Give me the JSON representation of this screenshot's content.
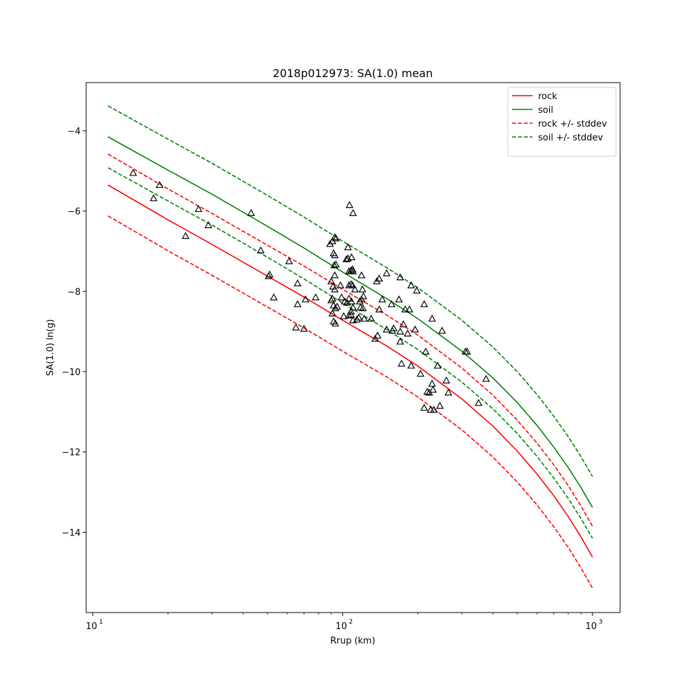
{
  "chart_data": {
    "type": "scatter",
    "title": "2018p012973: SA(1.0) mean",
    "xlabel": "Rrup (km)",
    "ylabel": "SA(1.0) ln(g)",
    "xscale": "log",
    "xlim": [
      9.4,
      1290
    ],
    "ylim": [
      -16.0,
      -2.8
    ],
    "x_tick_labels": [
      "10",
      "10",
      "10"
    ],
    "x_tick_exponents": [
      "1",
      "2",
      "3"
    ],
    "x_tick_values": [
      10,
      100,
      1000
    ],
    "y_ticks": [
      -4,
      -6,
      -8,
      -10,
      -12,
      -14
    ],
    "y_tick_labels": [
      "−4",
      "−6",
      "−8",
      "−10",
      "−12",
      "−14"
    ],
    "grid": false,
    "legend_position": "top-right",
    "colors": {
      "rock": "#ff0000",
      "soil": "#008000",
      "points": "#000000"
    },
    "curve_x": [
      11.5,
      20,
      30,
      50,
      70,
      100,
      150,
      200,
      300,
      400,
      500,
      600,
      700,
      800,
      900,
      1000
    ],
    "series": [
      {
        "name": "rock",
        "color": "#ff0000",
        "style": "solid",
        "y": [
          -5.35,
          -6.22,
          -6.83,
          -7.62,
          -8.14,
          -8.72,
          -9.36,
          -9.86,
          -10.68,
          -11.36,
          -11.98,
          -12.55,
          -13.09,
          -13.61,
          -14.12,
          -14.62
        ]
      },
      {
        "name": "soil",
        "color": "#008000",
        "style": "solid",
        "y": [
          -4.15,
          -4.98,
          -5.58,
          -6.38,
          -6.92,
          -7.52,
          -8.18,
          -8.68,
          -9.49,
          -10.16,
          -10.77,
          -11.34,
          -11.88,
          -12.39,
          -12.89,
          -13.38
        ]
      },
      {
        "name": "rock +/- stddev",
        "color": "#ff0000",
        "style": "dashed",
        "y": [
          -4.58,
          -5.45,
          -6.06,
          -6.85,
          -7.37,
          -7.95,
          -8.59,
          -9.09,
          -9.91,
          -10.59,
          -11.21,
          -11.78,
          -12.32,
          -12.84,
          -13.35,
          -13.85
        ]
      },
      {
        "name": "",
        "color": "#ff0000",
        "style": "dashed",
        "legend": false,
        "y": [
          -6.12,
          -6.99,
          -7.6,
          -8.39,
          -8.91,
          -9.49,
          -10.13,
          -10.63,
          -11.45,
          -12.13,
          -12.75,
          -13.32,
          -13.86,
          -14.38,
          -14.89,
          -15.39
        ]
      },
      {
        "name": "soil +/- stddev",
        "color": "#008000",
        "style": "dashed",
        "y": [
          -3.38,
          -4.21,
          -4.81,
          -5.61,
          -6.15,
          -6.75,
          -7.41,
          -7.91,
          -8.72,
          -9.39,
          -10.0,
          -10.57,
          -11.11,
          -11.62,
          -12.12,
          -12.61
        ]
      },
      {
        "name": "",
        "color": "#008000",
        "style": "dashed",
        "legend": false,
        "y": [
          -4.92,
          -5.75,
          -6.35,
          -7.15,
          -7.69,
          -8.29,
          -8.95,
          -9.45,
          -10.26,
          -10.93,
          -11.54,
          -12.11,
          -12.65,
          -13.16,
          -13.66,
          -14.15
        ]
      }
    ],
    "points": [
      [
        14.5,
        -5.05
      ],
      [
        18.5,
        -5.35
      ],
      [
        17.5,
        -5.68
      ],
      [
        26.5,
        -5.95
      ],
      [
        29,
        -6.35
      ],
      [
        23.5,
        -6.62
      ],
      [
        43,
        -6.05
      ],
      [
        47,
        -6.98
      ],
      [
        51,
        -7.58
      ],
      [
        50.5,
        -7.62
      ],
      [
        53,
        -8.15
      ],
      [
        61,
        -7.25
      ],
      [
        66,
        -7.8
      ],
      [
        71,
        -8.2
      ],
      [
        66,
        -8.32
      ],
      [
        78,
        -8.15
      ],
      [
        65,
        -8.9
      ],
      [
        70,
        -8.93
      ],
      [
        89,
        -6.82
      ],
      [
        91,
        -6.75
      ],
      [
        93,
        -6.65
      ],
      [
        94,
        -6.68
      ],
      [
        92,
        -7.05
      ],
      [
        93,
        -7.1
      ],
      [
        92.5,
        -7.35
      ],
      [
        94,
        -7.33
      ],
      [
        93,
        -7.6
      ],
      [
        90,
        -7.75
      ],
      [
        91.5,
        -7.88
      ],
      [
        93,
        -7.95
      ],
      [
        91,
        -8.18
      ],
      [
        90,
        -8.22
      ],
      [
        92,
        -8.35
      ],
      [
        93.5,
        -8.42
      ],
      [
        95,
        -8.38
      ],
      [
        91,
        -8.55
      ],
      [
        92,
        -8.75
      ],
      [
        93.5,
        -8.8
      ],
      [
        98,
        -7.85
      ],
      [
        99,
        -8.15
      ],
      [
        102,
        -8.25
      ],
      [
        104,
        -8.28
      ],
      [
        101,
        -8.62
      ],
      [
        106,
        -8.6
      ],
      [
        108,
        -8.58
      ],
      [
        105,
        -6.9
      ],
      [
        106.5,
        -5.85
      ],
      [
        110,
        -6.05
      ],
      [
        103.5,
        -7.2
      ],
      [
        105,
        -7.18
      ],
      [
        108.5,
        -7.15
      ],
      [
        106,
        -7.5
      ],
      [
        108,
        -7.48
      ],
      [
        110,
        -7.5
      ],
      [
        109.5,
        -7.45
      ],
      [
        106,
        -7.85
      ],
      [
        108,
        -7.82
      ],
      [
        109.5,
        -7.85
      ],
      [
        106,
        -8.18
      ],
      [
        108.5,
        -8.25
      ],
      [
        110,
        -8.4
      ],
      [
        108,
        -8.5
      ],
      [
        110,
        -8.72
      ],
      [
        112,
        -7.95
      ],
      [
        116,
        -8.65
      ],
      [
        117,
        -8.25
      ],
      [
        118,
        -8.4
      ],
      [
        114,
        -8.7
      ],
      [
        119,
        -8.2
      ],
      [
        120,
        -7.95
      ],
      [
        120.5,
        -8.42
      ],
      [
        122,
        -8.68
      ],
      [
        119,
        -7.6
      ],
      [
        121,
        -8.12
      ],
      [
        130,
        -8.68
      ],
      [
        135,
        -9.18
      ],
      [
        138,
        -9.1
      ],
      [
        140,
        -8.45
      ],
      [
        137,
        -7.75
      ],
      [
        140,
        -7.68
      ],
      [
        144,
        -8.2
      ],
      [
        150,
        -7.55
      ],
      [
        150,
        -8.95
      ],
      [
        157,
        -8.32
      ],
      [
        160,
        -8.92
      ],
      [
        158,
        -8.98
      ],
      [
        170,
        -7.65
      ],
      [
        168,
        -8.2
      ],
      [
        170,
        -9.0
      ],
      [
        170,
        -9.25
      ],
      [
        175,
        -8.82
      ],
      [
        178,
        -8.45
      ],
      [
        182,
        -9.05
      ],
      [
        185,
        -8.45
      ],
      [
        188,
        -7.85
      ],
      [
        198,
        -7.98
      ],
      [
        195,
        -8.95
      ],
      [
        172,
        -9.8
      ],
      [
        188,
        -9.85
      ],
      [
        205,
        -10.05
      ],
      [
        212,
        -8.32
      ],
      [
        215,
        -9.5
      ],
      [
        218,
        -10.5
      ],
      [
        222,
        -10.52
      ],
      [
        212,
        -10.9
      ],
      [
        228,
        -10.3
      ],
      [
        230,
        -10.45
      ],
      [
        228,
        -8.68
      ],
      [
        225,
        -10.95
      ],
      [
        232,
        -10.95
      ],
      [
        240,
        -9.85
      ],
      [
        250,
        -8.98
      ],
      [
        245,
        -10.85
      ],
      [
        260,
        -10.22
      ],
      [
        265,
        -10.52
      ],
      [
        310,
        -9.5
      ],
      [
        315,
        -9.5
      ],
      [
        350,
        -10.78
      ],
      [
        375,
        -10.18
      ]
    ]
  }
}
